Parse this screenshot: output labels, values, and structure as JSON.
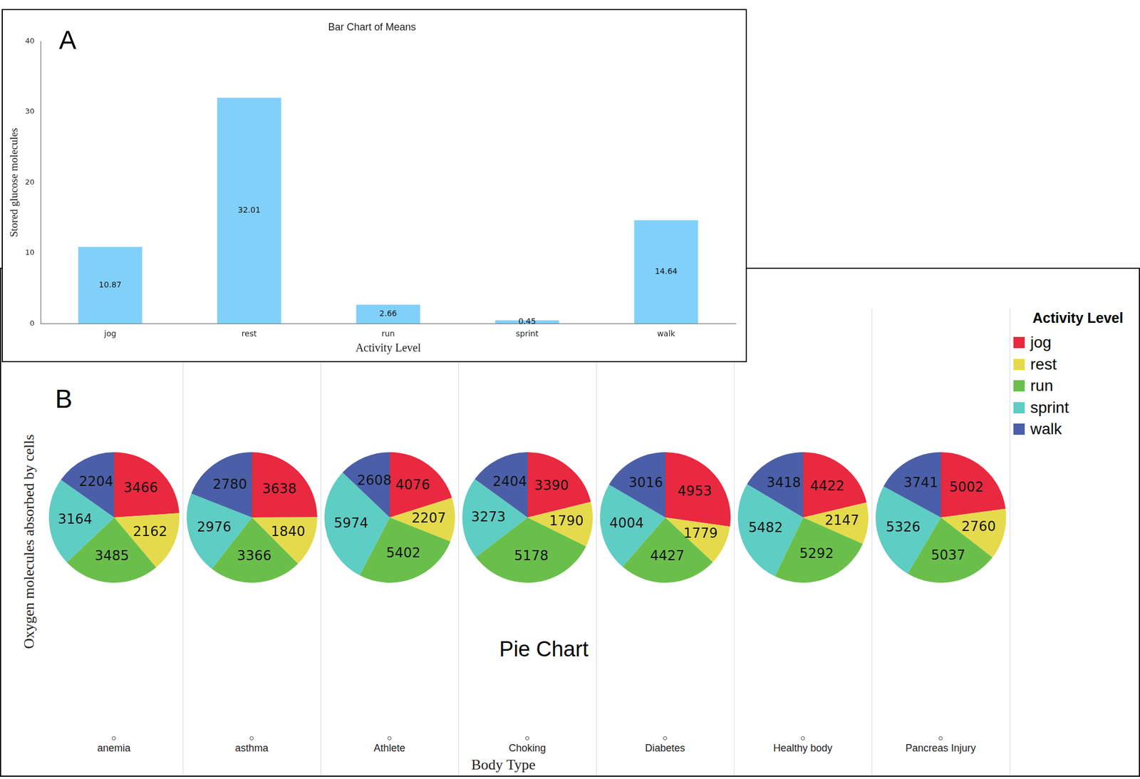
{
  "chart_data": [
    {
      "type": "bar",
      "panel_label": "A",
      "title": "Bar Chart of Means",
      "x_label": "Activity Level",
      "y_label": "Stored glucose molecules",
      "categories": [
        "jog",
        "rest",
        "run",
        "sprint",
        "walk"
      ],
      "values": [
        10.87,
        32.01,
        2.66,
        0.45,
        14.64
      ],
      "color": "#81d0fa",
      "ylim": [
        0,
        40
      ],
      "yticks": [
        0,
        10,
        20,
        30,
        40
      ],
      "grid": false,
      "data_labels": true
    },
    {
      "type": "pie",
      "panel_label": "B",
      "title": "Pie Chart",
      "x_label": "Body Type",
      "y_label": "Oxygen molecules absorbed by cells",
      "legend_title": "Activity Level",
      "legend": "right",
      "categories": [
        "jog",
        "rest",
        "run",
        "sprint",
        "walk"
      ],
      "colors": [
        "#e8293f",
        "#e5da4c",
        "#6abf4b",
        "#5ecdc4",
        "#4a5fa8"
      ],
      "data_labels": true,
      "series": [
        {
          "name": "anemia",
          "values": [
            3466,
            2162,
            3485,
            3164,
            2204
          ]
        },
        {
          "name": "asthma",
          "values": [
            3638,
            1840,
            3366,
            2976,
            2780
          ]
        },
        {
          "name": "Athlete",
          "values": [
            4076,
            2207,
            5402,
            5974,
            2608
          ]
        },
        {
          "name": "Choking",
          "values": [
            3390,
            1790,
            5178,
            3273,
            2404
          ]
        },
        {
          "name": "Diabetes",
          "values": [
            4953,
            1779,
            4427,
            4004,
            3016
          ]
        },
        {
          "name": "Healthy body",
          "values": [
            4422,
            2147,
            5292,
            5482,
            3418
          ]
        },
        {
          "name": "Pancreas Injury",
          "values": [
            5002,
            2760,
            5037,
            5326,
            3741
          ]
        }
      ]
    }
  ]
}
